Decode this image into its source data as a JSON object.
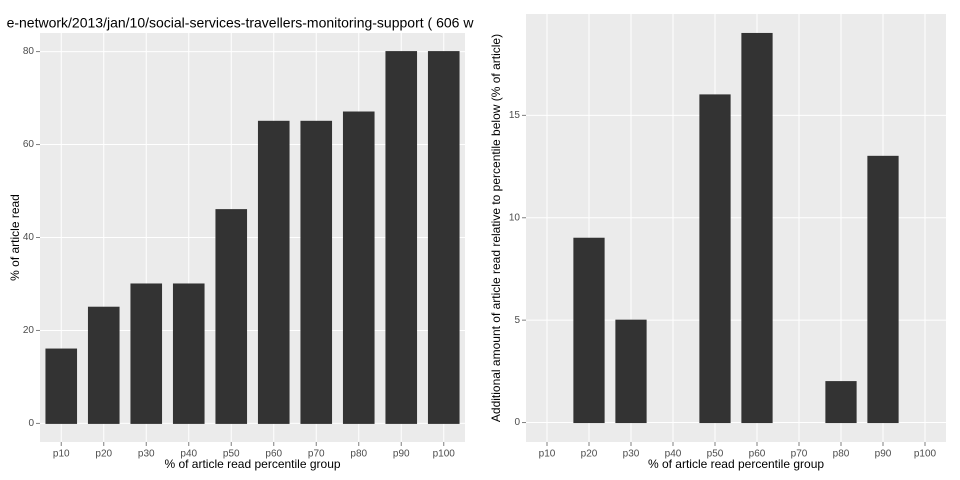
{
  "chart_data": [
    {
      "type": "bar",
      "title": "e-network/2013/jan/10/social-services-travellers-monitoring-support ( 606 w",
      "x_label": "% of article read percentile group",
      "y_label": "% of article read",
      "categories": [
        "p10",
        "p20",
        "p30",
        "p40",
        "p50",
        "p60",
        "p70",
        "p80",
        "p90",
        "p100"
      ],
      "values": [
        16,
        25,
        30,
        30,
        46,
        65,
        65,
        67,
        80,
        80
      ],
      "color": "#333333",
      "ylim": [
        -4,
        84
      ],
      "yticks": [
        0,
        20,
        40,
        60,
        80
      ],
      "grid": true
    },
    {
      "type": "bar",
      "x_label": "% of article read percentile group",
      "y_label": "Additional amount of article read relative to percentile below (% of article)",
      "categories": [
        "p10",
        "p20",
        "p30",
        "p40",
        "p50",
        "p60",
        "p70",
        "p80",
        "p90",
        "p100"
      ],
      "values": [
        0,
        9,
        5,
        0,
        16,
        19,
        0,
        2,
        13,
        0
      ],
      "color": "#333333",
      "ylim": [
        -0.95,
        19.95
      ],
      "yticks": [
        0,
        5,
        10,
        15
      ],
      "grid": true
    }
  ]
}
